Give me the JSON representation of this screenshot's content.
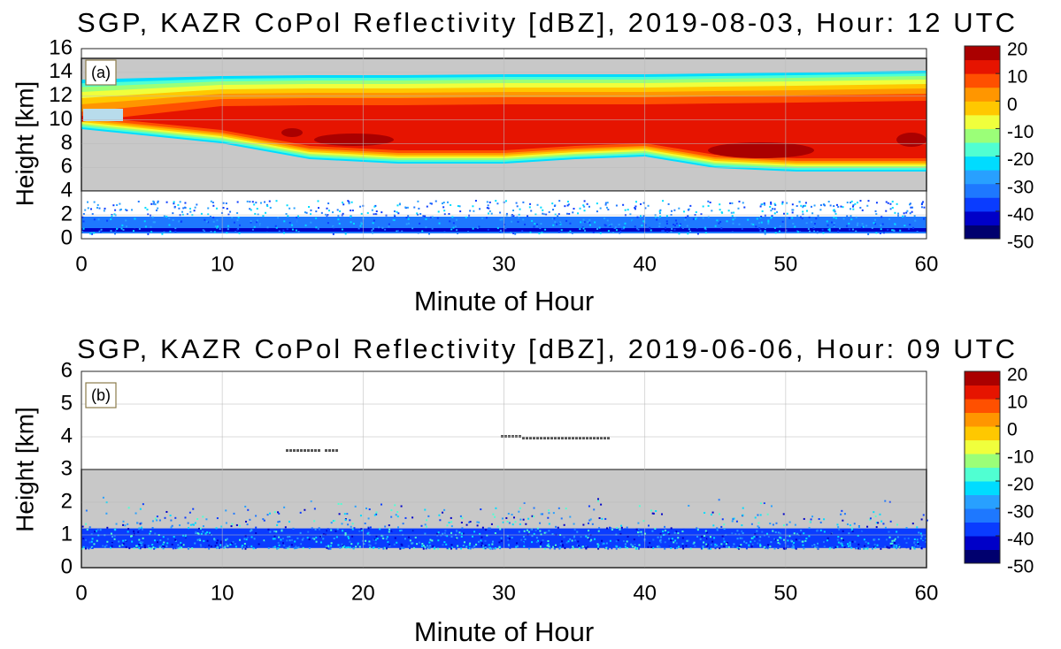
{
  "chart_data": [
    {
      "type": "heatmap",
      "title": "SGP, KAZR CoPol Reflectivity [dBZ], 2019-08-03, Hour: 12 UTC",
      "xlabel": "Minute of Hour",
      "ylabel": "Height [km]",
      "panel_label": "(a)",
      "xlim": [
        0,
        60
      ],
      "xticks": [
        0,
        10,
        20,
        30,
        40,
        50,
        60
      ],
      "ylim": [
        0,
        16
      ],
      "yticks": [
        0,
        2,
        4,
        6,
        8,
        10,
        12,
        14,
        16
      ],
      "grid": true,
      "colorbar": {
        "clim": [
          -50,
          20
        ],
        "ticks": [
          20,
          10,
          0,
          -10,
          -20,
          -30,
          -40,
          -50
        ],
        "colors": [
          "#00006e",
          "#0000c8",
          "#0a3cff",
          "#1e78ff",
          "#28a0ff",
          "#00dcff",
          "#50ffd2",
          "#9bff78",
          "#f0ff3c",
          "#ffc800",
          "#ff9600",
          "#ff5000",
          "#e61400",
          "#aa0000"
        ]
      }
    },
    {
      "type": "heatmap",
      "title": "SGP, KAZR CoPol Reflectivity [dBZ], 2019-06-06, Hour: 09 UTC",
      "xlabel": "Minute of Hour",
      "ylabel": "Height [km]",
      "panel_label": "(b)",
      "xlim": [
        0,
        60
      ],
      "xticks": [
        0,
        10,
        20,
        30,
        40,
        50,
        60
      ],
      "ylim": [
        0,
        6
      ],
      "yticks": [
        0,
        1,
        2,
        3,
        4,
        5,
        6
      ],
      "grid": true,
      "colorbar": {
        "clim": [
          -50,
          20
        ],
        "ticks": [
          20,
          10,
          0,
          -10,
          -20,
          -30,
          -40,
          -50
        ],
        "colors": [
          "#00006e",
          "#0000c8",
          "#0a3cff",
          "#1e78ff",
          "#28a0ff",
          "#00dcff",
          "#50ffd2",
          "#9bff78",
          "#f0ff3c",
          "#ffc800",
          "#ff9600",
          "#ff5000",
          "#e61400",
          "#aa0000"
        ]
      }
    }
  ]
}
